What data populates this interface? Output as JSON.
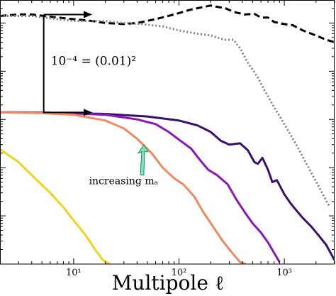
{
  "chart_data": {
    "type": "line",
    "title": "",
    "xlabel": "Multipole ℓ",
    "ylabel": "",
    "xscale": "log",
    "yscale": "log",
    "xlim": [
      2,
      3000
    ],
    "ylim": [
      0.001,
      300
    ],
    "grid": false,
    "legend": "none",
    "x_ticks": [
      {
        "value": 10,
        "label": "10¹"
      },
      {
        "value": 100,
        "label": "10²"
      },
      {
        "value": 1000,
        "label": "10³"
      }
    ],
    "series": [
      {
        "style": "dashed",
        "color": "#000000",
        "points": [
          [
            2,
            140
          ],
          [
            3,
            150
          ],
          [
            4,
            150
          ],
          [
            6,
            135
          ],
          [
            10,
            120
          ],
          [
            15,
            110
          ],
          [
            20,
            100
          ],
          [
            30,
            95
          ],
          [
            40,
            100
          ],
          [
            60,
            120
          ],
          [
            90,
            150
          ],
          [
            130,
            190
          ],
          [
            200,
            230
          ],
          [
            280,
            200
          ],
          [
            330,
            170
          ],
          [
            420,
            150
          ],
          [
            520,
            155
          ],
          [
            600,
            130
          ],
          [
            700,
            130
          ],
          [
            800,
            105
          ],
          [
            1000,
            95
          ],
          [
            1200,
            90
          ],
          [
            1500,
            70
          ],
          [
            2000,
            55
          ],
          [
            2500,
            45
          ],
          [
            3000,
            40
          ]
        ]
      },
      {
        "style": "dotted",
        "color": "#808080",
        "points": [
          [
            2,
            140
          ],
          [
            4,
            140
          ],
          [
            6,
            125
          ],
          [
            10,
            110
          ],
          [
            20,
            110
          ],
          [
            30,
            100
          ],
          [
            45,
            95
          ],
          [
            55,
            90
          ],
          [
            70,
            85
          ],
          [
            100,
            70
          ],
          [
            150,
            60
          ],
          [
            200,
            55
          ],
          [
            270,
            45
          ],
          [
            330,
            45
          ],
          [
            380,
            30
          ],
          [
            450,
            15
          ],
          [
            550,
            8
          ],
          [
            650,
            4
          ],
          [
            800,
            1.8
          ],
          [
            1000,
            0.8
          ],
          [
            1300,
            0.3
          ],
          [
            1700,
            0.1
          ],
          [
            2200,
            0.035
          ],
          [
            2700,
            0.015
          ]
        ]
      },
      {
        "style": "solid",
        "color": "#3a0f6e",
        "points": [
          [
            2,
            1.4
          ],
          [
            3,
            1.4
          ],
          [
            5,
            1.38
          ],
          [
            10,
            1.35
          ],
          [
            20,
            1.3
          ],
          [
            50,
            1.15
          ],
          [
            100,
            0.95
          ],
          [
            150,
            0.75
          ],
          [
            200,
            0.55
          ],
          [
            250,
            0.36
          ],
          [
            300,
            0.3
          ],
          [
            380,
            0.32
          ],
          [
            450,
            0.23
          ],
          [
            520,
            0.13
          ],
          [
            560,
            0.12
          ],
          [
            620,
            0.16
          ],
          [
            700,
            0.09
          ],
          [
            770,
            0.05
          ],
          [
            850,
            0.055
          ],
          [
            1000,
            0.028
          ],
          [
            1150,
            0.018
          ],
          [
            1300,
            0.013
          ],
          [
            1500,
            0.009
          ],
          [
            1800,
            0.006
          ],
          [
            2100,
            0.004
          ],
          [
            2500,
            0.0025
          ],
          [
            3000,
            0.0012
          ]
        ]
      },
      {
        "style": "solid",
        "color": "#8a17b5",
        "points": [
          [
            2,
            1.4
          ],
          [
            5,
            1.38
          ],
          [
            10,
            1.33
          ],
          [
            20,
            1.25
          ],
          [
            40,
            1.0
          ],
          [
            60,
            0.8
          ],
          [
            80,
            0.55
          ],
          [
            100,
            0.38
          ],
          [
            130,
            0.25
          ],
          [
            160,
            0.14
          ],
          [
            190,
            0.09
          ],
          [
            230,
            0.07
          ],
          [
            290,
            0.045
          ],
          [
            350,
            0.022
          ],
          [
            420,
            0.012
          ],
          [
            500,
            0.007
          ],
          [
            600,
            0.0045
          ],
          [
            700,
            0.0028
          ],
          [
            800,
            0.0017
          ],
          [
            900,
            0.0011
          ]
        ]
      },
      {
        "style": "solid",
        "color": "#ef8a5e",
        "points": [
          [
            2,
            1.4
          ],
          [
            5,
            1.35
          ],
          [
            10,
            1.25
          ],
          [
            20,
            0.95
          ],
          [
            30,
            0.65
          ],
          [
            40,
            0.4
          ],
          [
            55,
            0.2
          ],
          [
            70,
            0.1
          ],
          [
            90,
            0.06
          ],
          [
            110,
            0.045
          ],
          [
            140,
            0.025
          ],
          [
            170,
            0.012
          ],
          [
            210,
            0.006
          ],
          [
            260,
            0.003
          ],
          [
            320,
            0.0017
          ],
          [
            380,
            0.0011
          ],
          [
            430,
            0.001
          ]
        ]
      },
      {
        "style": "solid",
        "color": "#f2d21b",
        "points": [
          [
            2,
            0.24
          ],
          [
            3,
            0.13
          ],
          [
            4,
            0.07
          ],
          [
            6,
            0.03
          ],
          [
            8,
            0.015
          ],
          [
            10,
            0.008
          ],
          [
            13,
            0.004
          ],
          [
            16,
            0.002
          ],
          [
            19,
            0.0012
          ],
          [
            22,
            0.001
          ]
        ]
      }
    ],
    "annotations": [
      {
        "text": "10⁻⁴ = (0.01)²"
      },
      {
        "text": "increasing mₐ"
      }
    ]
  }
}
